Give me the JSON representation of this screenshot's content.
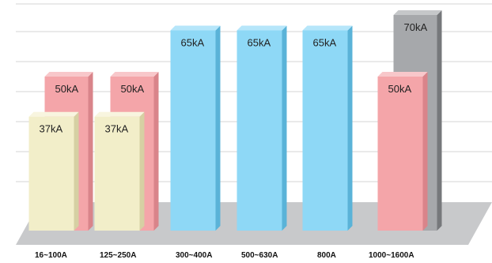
{
  "chart_data": {
    "type": "bar",
    "title": "",
    "xlabel": "",
    "ylabel": "",
    "ylim": [
      0,
      80
    ],
    "grid": true,
    "unit": "kA",
    "categories": [
      "16~100A",
      "125~250A",
      "300~400A",
      "500~630A",
      "800A",
      "1000~1600A"
    ],
    "bars": [
      {
        "category": 0,
        "value": 50,
        "label": "50kA",
        "color": "#f4a5a9",
        "side": "#d9848a",
        "top": "#f8c7ca",
        "layer": "back"
      },
      {
        "category": 0,
        "value": 37,
        "label": "37kA",
        "color": "#f2eec9",
        "side": "#d6d0a3",
        "top": "#f8f5df",
        "layer": "front"
      },
      {
        "category": 1,
        "value": 50,
        "label": "50kA",
        "color": "#f4a5a9",
        "side": "#d9848a",
        "top": "#f8c7ca",
        "layer": "back"
      },
      {
        "category": 1,
        "value": 37,
        "label": "37kA",
        "color": "#f2eec9",
        "side": "#d6d0a3",
        "top": "#f8f5df",
        "layer": "front"
      },
      {
        "category": 2,
        "value": 65,
        "label": "65kA",
        "color": "#8ed8f6",
        "side": "#5ab3d8",
        "top": "#b6e6fa",
        "layer": "single"
      },
      {
        "category": 3,
        "value": 65,
        "label": "65kA",
        "color": "#8ed8f6",
        "side": "#5ab3d8",
        "top": "#b6e6fa",
        "layer": "single"
      },
      {
        "category": 4,
        "value": 65,
        "label": "65kA",
        "color": "#8ed8f6",
        "side": "#5ab3d8",
        "top": "#b6e6fa",
        "layer": "single"
      },
      {
        "category": 5,
        "value": 70,
        "label": "70kA",
        "color": "#a6a8ab",
        "side": "#76787b",
        "top": "#c5c7c9",
        "layer": "back"
      },
      {
        "category": 5,
        "value": 50,
        "label": "50kA",
        "color": "#f4a5a9",
        "side": "#d9848a",
        "top": "#f8c7ca",
        "layer": "front"
      }
    ],
    "colors": {
      "floor": "#c8c9cb",
      "grid": "#d4d4d4"
    }
  }
}
